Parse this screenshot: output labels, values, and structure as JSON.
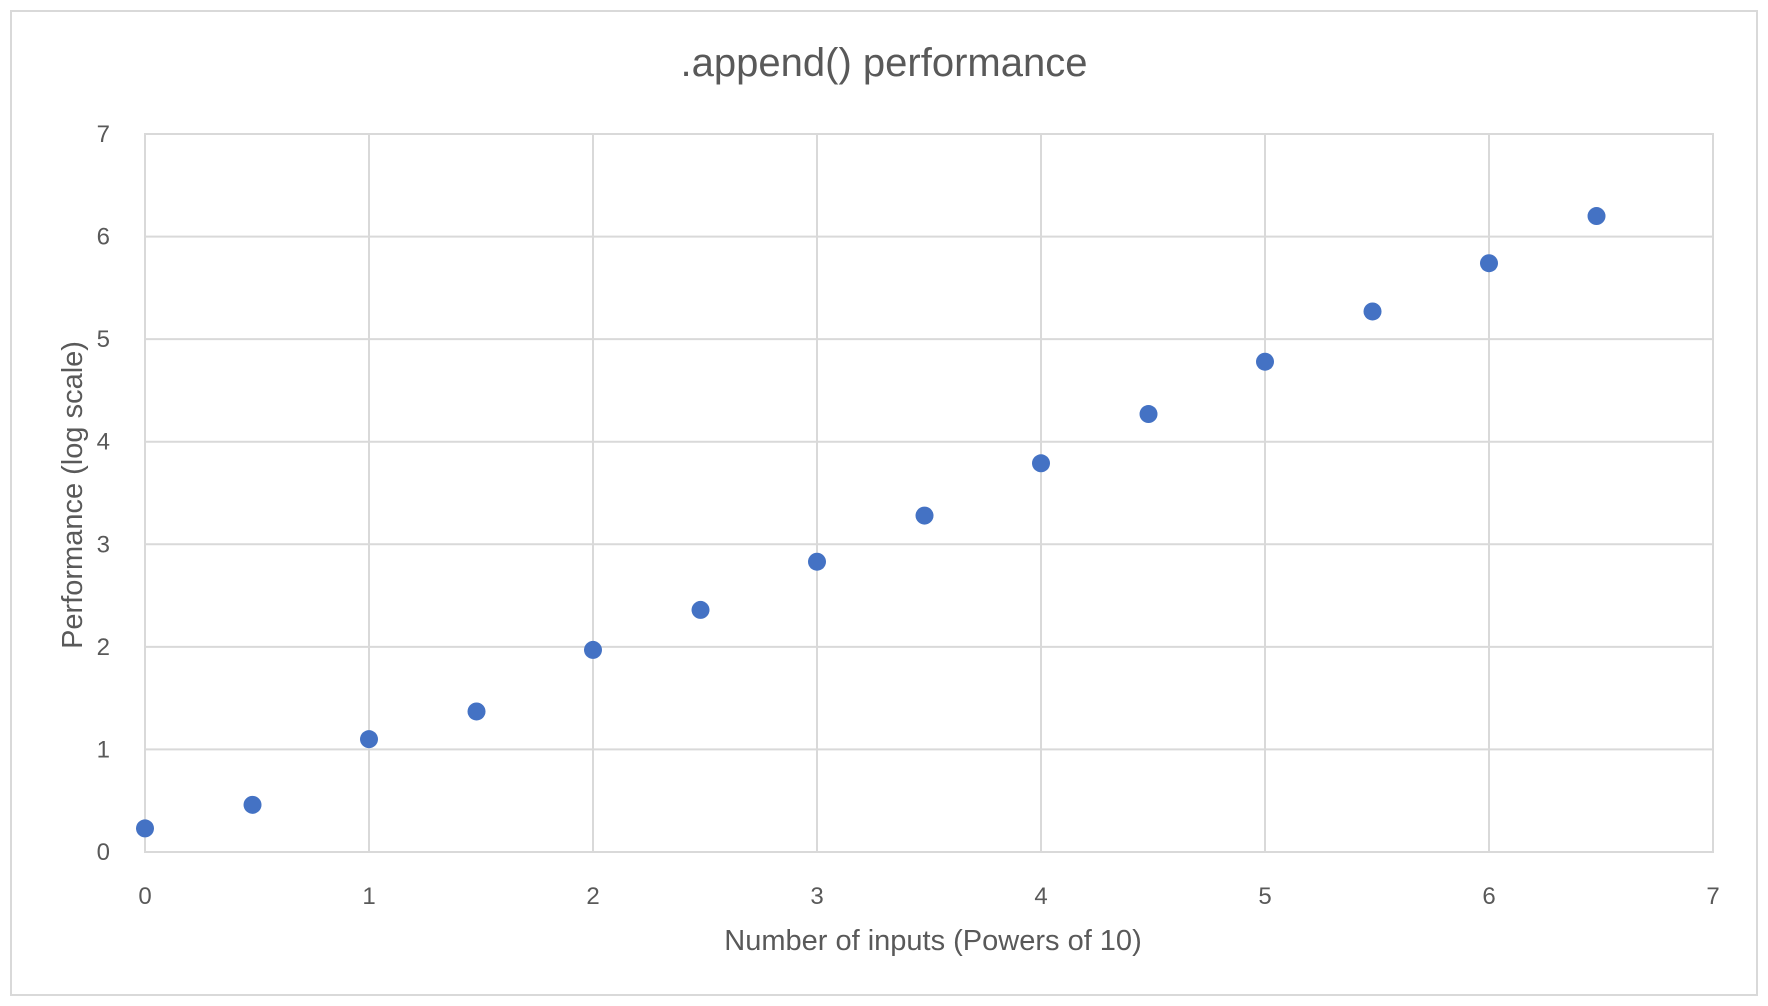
{
  "chart_data": {
    "type": "scatter",
    "title": ".append() performance",
    "xlabel": "Number of inputs (Powers of 10)",
    "ylabel": "Performance (log scale)",
    "xlim": [
      0,
      7
    ],
    "ylim": [
      0,
      7
    ],
    "xticks": [
      "0",
      "1",
      "2",
      "3",
      "4",
      "5",
      "6",
      "7"
    ],
    "yticks": [
      "0",
      "1",
      "2",
      "3",
      "4",
      "5",
      "6",
      "7"
    ],
    "grid": true,
    "marker_color": "#4472C4",
    "series": [
      {
        "x": [
          0,
          0.48,
          1,
          1.48,
          2,
          2.48,
          3,
          3.48,
          4,
          4.48,
          5,
          5.48,
          6,
          6.48
        ],
        "y": [
          0.23,
          0.46,
          1.1,
          1.37,
          1.97,
          2.36,
          2.83,
          3.28,
          3.79,
          4.27,
          4.78,
          5.27,
          5.74,
          6.2
        ]
      }
    ]
  }
}
